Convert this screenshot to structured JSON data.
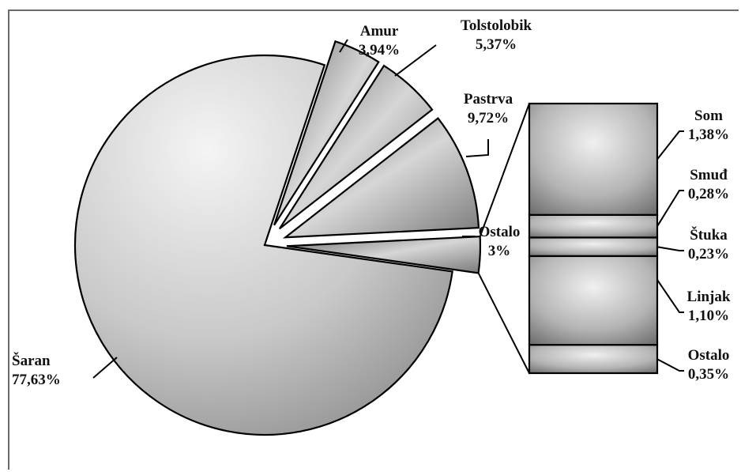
{
  "chart_data": {
    "type": "pie",
    "title": "",
    "pie": {
      "slices": [
        {
          "label": "Šaran",
          "value": 77.63,
          "value_label": "77,63%"
        },
        {
          "label": "Amur",
          "value": 3.94,
          "value_label": "3,94%"
        },
        {
          "label": "Tolstolobik",
          "value": 5.37,
          "value_label": "5,37%"
        },
        {
          "label": "Pastrva",
          "value": 9.72,
          "value_label": "9,72%"
        },
        {
          "label": "Ostalo",
          "value": 3,
          "value_label": "3%"
        }
      ]
    },
    "breakdown_of": "Ostalo",
    "breakdown": [
      {
        "label": "Som",
        "value": 1.38,
        "value_label": "1,38%"
      },
      {
        "label": "Smuđ",
        "value": 0.28,
        "value_label": "0,28%"
      },
      {
        "label": "Štuka",
        "value": 0.23,
        "value_label": "0,23%"
      },
      {
        "label": "Linjak",
        "value": 1.1,
        "value_label": "1,10%"
      },
      {
        "label": "Ostalo",
        "value": 0.35,
        "value_label": "0,35%"
      }
    ]
  }
}
